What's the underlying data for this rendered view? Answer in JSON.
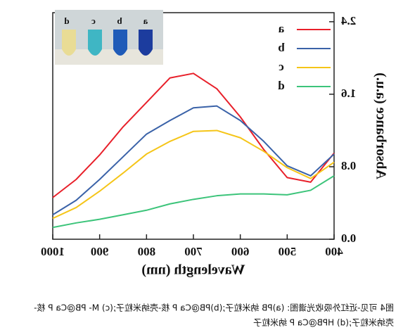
{
  "chart_data": {
    "type": "line",
    "xlabel": "Wavelength (nm)",
    "ylabel": "Absorbance (a.u.)",
    "x": [
      1000,
      950,
      900,
      850,
      800,
      750,
      700,
      650,
      600,
      550,
      500,
      450,
      400
    ],
    "series": [
      {
        "name": "a",
        "color": "#e8202a",
        "values": [
          0.46,
          0.66,
          0.93,
          1.24,
          1.51,
          1.78,
          1.83,
          1.66,
          1.35,
          0.99,
          0.68,
          0.63,
          0.95
        ]
      },
      {
        "name": "b",
        "color": "#3a62a8",
        "values": [
          0.27,
          0.43,
          0.66,
          0.91,
          1.16,
          1.31,
          1.45,
          1.47,
          1.31,
          1.08,
          0.81,
          0.7,
          0.94
        ]
      },
      {
        "name": "c",
        "color": "#f5c518",
        "values": [
          0.23,
          0.35,
          0.53,
          0.73,
          0.94,
          1.08,
          1.19,
          1.2,
          1.12,
          0.97,
          0.79,
          0.67,
          0.85
        ]
      },
      {
        "name": "d",
        "color": "#3cc47a",
        "values": [
          0.13,
          0.18,
          0.22,
          0.27,
          0.32,
          0.39,
          0.44,
          0.48,
          0.5,
          0.5,
          0.49,
          0.54,
          0.7
        ]
      }
    ],
    "xlim": [
      1000,
      400
    ],
    "xticks": [
      1000,
      900,
      800,
      700,
      600,
      500,
      400
    ],
    "ylim": [
      0,
      2.5
    ],
    "yticks": [
      {
        "value": 0,
        "label": "0.0"
      },
      0.8,
      1.6,
      2.4
    ],
    "legend": "top-right",
    "mirrored": true,
    "inset_labels": [
      "d",
      "c",
      "b",
      "a"
    ]
  },
  "caption": [
    "图4 可见-近红外吸收光谱图: (a)PB 纳米粒子;(b)PB@Ca P 核-壳纳米粒子;(c) M- PB@Ca P 核-",
    "壳纳米粒子;(d) HPB@Ca P 纳米粒子"
  ]
}
